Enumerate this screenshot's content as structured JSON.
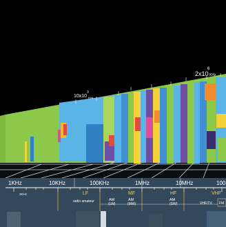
{
  "scale_labels": {
    "perspective": [
      {
        "text": "10x10",
        "sup": "3",
        "unit": "KHz"
      },
      {
        "text": "2x10",
        "sup": "6",
        "unit": "KHz"
      }
    ],
    "frequencies": [
      "1KHz",
      "10KHz",
      "100KHz",
      "1MHz",
      "10MHz",
      "100"
    ],
    "sub_label": "3KHz"
  },
  "bands": [
    {
      "code": "LF"
    },
    {
      "code": "MF"
    },
    {
      "code": "HF"
    },
    {
      "code": "VHF"
    }
  ],
  "services": {
    "radio_amateur": "radio amateur",
    "am_lw_top": "AM",
    "am_lw_bottom": "(LW)",
    "am_mw_top": "AM",
    "am_mw_bottom": "(MW)",
    "am_sw_top": "AM",
    "am_sw_bottom": "(SW)",
    "vhf_tv": "VHF/TV",
    "fm": "FM"
  },
  "colors": {
    "background": "#33485a",
    "sky": "#000000",
    "floor": "#0b0d10",
    "band_green": "#8cc84a",
    "band_blue": "#5ab4e6",
    "band_yellow": "#f5d23a",
    "text_white": "#ffffff"
  }
}
